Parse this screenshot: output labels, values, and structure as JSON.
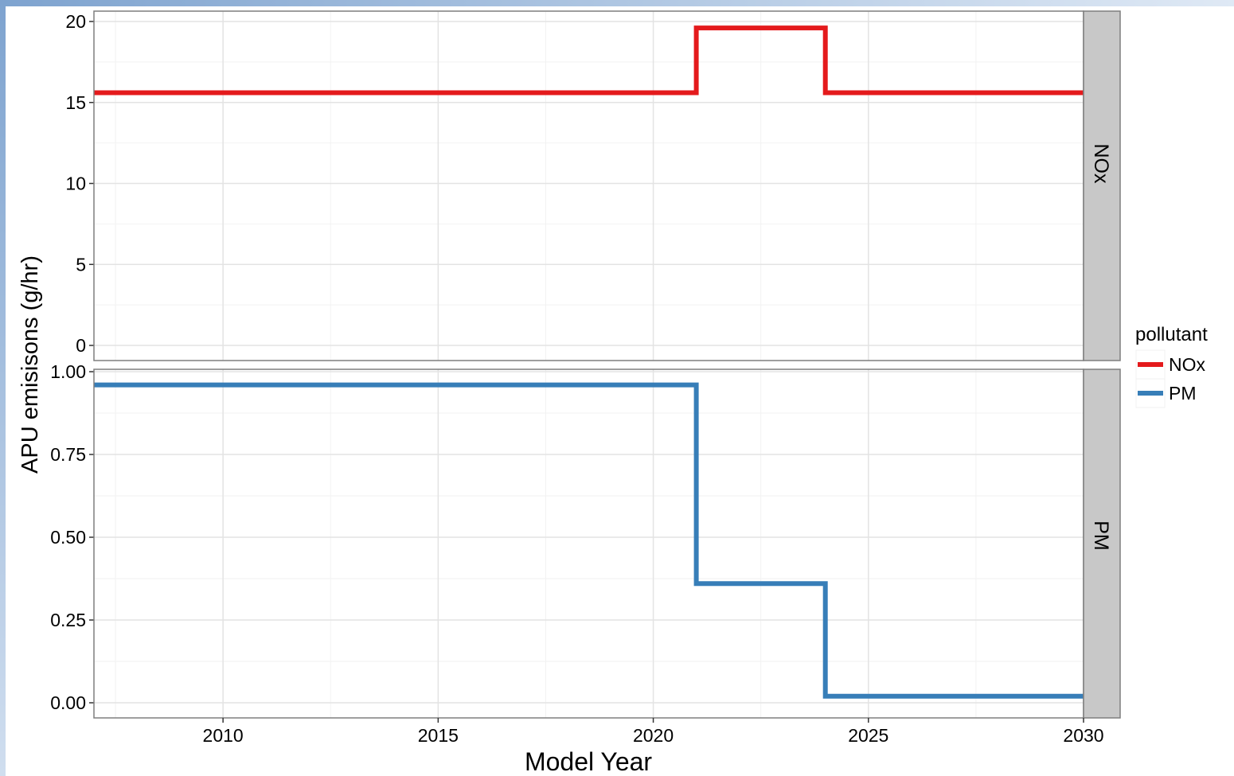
{
  "chart_data": {
    "type": "line",
    "line_style": "step",
    "facet_layout": "rows",
    "xlabel": "Model Year",
    "ylabel": "APU emisisons (g/hr)",
    "xlim": [
      2007,
      2030
    ],
    "x_ticks": [
      "2010",
      "2015",
      "2020",
      "2025",
      "2030"
    ],
    "grid": true,
    "legend": {
      "title": "pollutant",
      "placement": "right",
      "entries": [
        {
          "name": "NOx",
          "color": "#E41A1C"
        },
        {
          "name": "PM",
          "color": "#377EB8"
        }
      ]
    },
    "panels": [
      {
        "strip_label": "NOx",
        "color": "#E41A1C",
        "ylim": [
          0,
          20
        ],
        "y_ticks": [
          "0",
          "5",
          "10",
          "15",
          "20"
        ],
        "x": [
          2007,
          2021,
          2021,
          2024,
          2024,
          2030
        ],
        "y": [
          15.6,
          15.6,
          19.6,
          19.6,
          15.6,
          15.6
        ]
      },
      {
        "strip_label": "PM",
        "color": "#377EB8",
        "ylim": [
          0,
          1
        ],
        "y_ticks": [
          "0.00",
          "0.25",
          "0.50",
          "0.75",
          "1.00"
        ],
        "x": [
          2007,
          2021,
          2021,
          2024,
          2024,
          2030
        ],
        "y": [
          0.96,
          0.96,
          0.36,
          0.36,
          0.02,
          0.02
        ]
      }
    ]
  }
}
